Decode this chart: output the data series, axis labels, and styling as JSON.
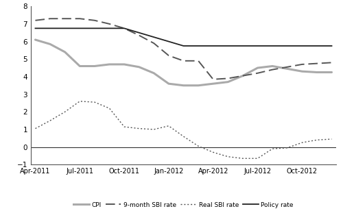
{
  "x_labels": [
    "Apr-2011",
    "Jul-2011",
    "Oct-2011",
    "Jan-2012",
    "Apr-2012",
    "Jul-2012",
    "Oct-2012"
  ],
  "ylim": [
    -1,
    8
  ],
  "yticks": [
    -1,
    0,
    1,
    2,
    3,
    4,
    5,
    6,
    7,
    8
  ],
  "background_color": "#ffffff",
  "cpi_color": "#aaaaaa",
  "sbi_9m_color": "#555555",
  "real_sbi_color": "#555555",
  "policy_color": "#222222",
  "legend_entries": [
    "CPI",
    "9-month SBI rate",
    "Real SBI rate",
    "Policy rate"
  ],
  "cpi_x": [
    0,
    1,
    2,
    3,
    4,
    5,
    6,
    7,
    8,
    9,
    10,
    11,
    12,
    13,
    14,
    15,
    16,
    17,
    18,
    19,
    20
  ],
  "cpi_y": [
    6.1,
    5.85,
    5.4,
    4.6,
    4.6,
    4.7,
    4.7,
    4.55,
    4.2,
    3.6,
    3.5,
    3.5,
    3.6,
    3.7,
    4.05,
    4.5,
    4.6,
    4.45,
    4.3,
    4.25,
    4.25
  ],
  "sbi_x": [
    0,
    1,
    2,
    3,
    4,
    5,
    6,
    7,
    8,
    9,
    10,
    11,
    12,
    13,
    14,
    15,
    16,
    17,
    18,
    19,
    20
  ],
  "sbi_y": [
    7.2,
    7.3,
    7.3,
    7.3,
    7.2,
    7.0,
    6.75,
    6.35,
    5.9,
    5.2,
    4.9,
    4.9,
    3.85,
    3.9,
    4.05,
    4.2,
    4.4,
    4.55,
    4.7,
    4.75,
    4.8
  ],
  "real_sbi_x": [
    0,
    1,
    2,
    3,
    4,
    5,
    6,
    7,
    8,
    9,
    10,
    11,
    12,
    13,
    14,
    15,
    16,
    17,
    18,
    19,
    20
  ],
  "real_sbi_y": [
    1.05,
    1.5,
    2.0,
    2.6,
    2.55,
    2.2,
    1.15,
    1.05,
    1.0,
    1.2,
    0.6,
    0.05,
    -0.3,
    -0.55,
    -0.65,
    -0.65,
    -0.1,
    -0.05,
    0.25,
    0.4,
    0.45
  ],
  "policy_x": [
    0,
    1,
    2,
    3,
    4,
    5,
    6,
    7,
    8,
    9,
    10,
    11,
    12,
    13,
    14,
    15,
    16,
    17,
    18,
    19,
    20
  ],
  "policy_y": [
    6.75,
    6.75,
    6.75,
    6.75,
    6.75,
    6.75,
    6.75,
    6.5,
    6.25,
    6.0,
    5.75,
    5.75,
    5.75,
    5.75,
    5.75,
    5.75,
    5.75,
    5.75,
    5.75,
    5.75,
    5.75
  ]
}
